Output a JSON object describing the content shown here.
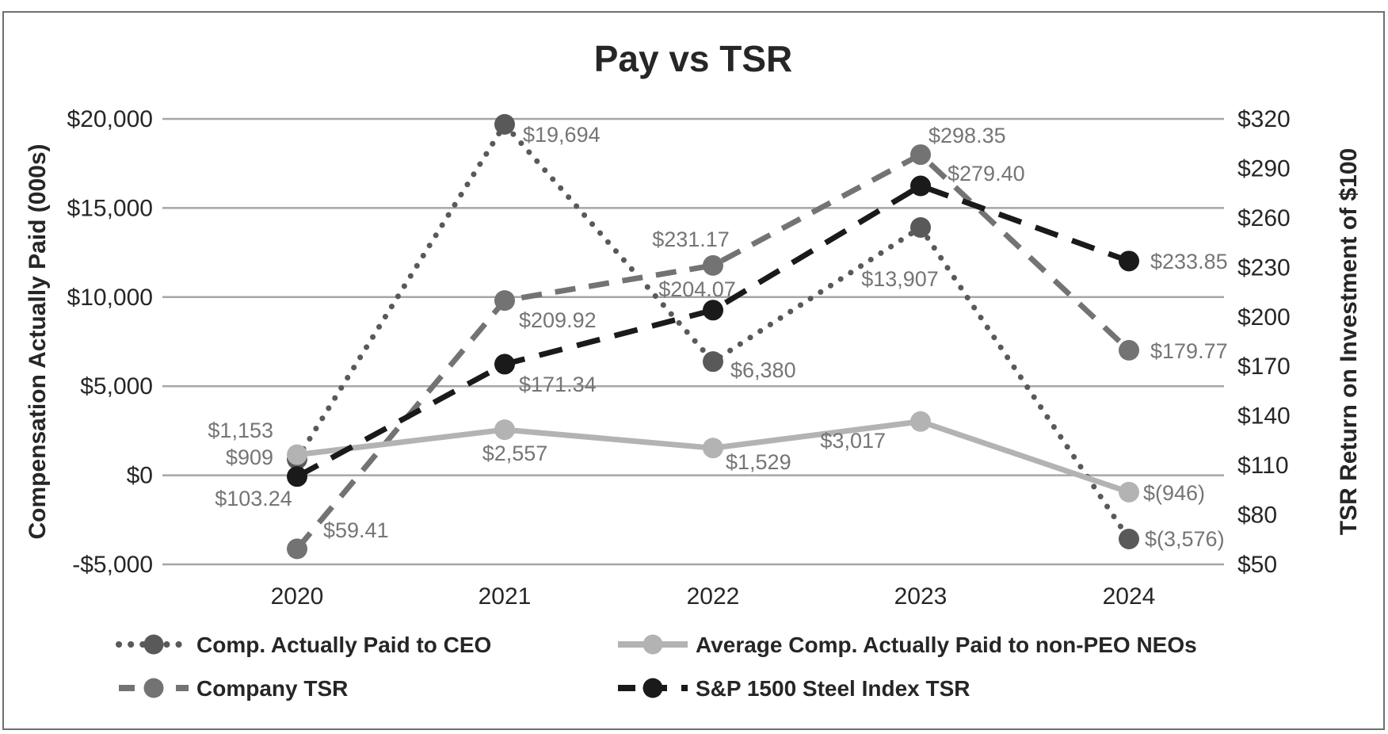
{
  "chart_data": {
    "type": "line",
    "title": "Pay vs TSR",
    "x_categories": [
      "2020",
      "2021",
      "2022",
      "2023",
      "2024"
    ],
    "left_axis": {
      "title": "Compensation Actually Paid (000s)",
      "min": -5000,
      "max": 20000,
      "tick_step": 5000,
      "tick_labels": [
        "$20,000",
        "$15,000",
        "$10,000",
        "$5,000",
        "$0",
        "-$5,000"
      ]
    },
    "right_axis": {
      "title": "TSR Return on Investment of $100",
      "min": 50,
      "max": 320,
      "tick_step": 30,
      "tick_labels": [
        "$320",
        "$290",
        "$260",
        "$230",
        "$200",
        "$170",
        "$140",
        "$110",
        "$80",
        "$50"
      ]
    },
    "grid": "horizontal",
    "grid_color": "#a6a6a6",
    "label_color": "#757575",
    "text_color": "#262626",
    "legend_position": "bottom",
    "series": [
      {
        "name": "Comp. Actually Paid to CEO",
        "axis": "left",
        "style": "dotted",
        "color": "#595959",
        "values": [
          909,
          19694,
          6380,
          13907,
          -3576
        ],
        "labels": [
          "$909",
          "$19,694",
          "$6,380",
          "$13,907",
          "$(3,576)"
        ]
      },
      {
        "name": "Average Comp. Actually Paid to non-PEO NEOs",
        "axis": "left",
        "style": "solid",
        "color": "#b3b3b3",
        "values": [
          1153,
          2557,
          1529,
          3017,
          -946
        ],
        "labels": [
          "$1,153",
          "$2,557",
          "$1,529",
          "$3,017",
          "$(946)"
        ]
      },
      {
        "name": "Company TSR",
        "axis": "right",
        "style": "dashed",
        "color": "#737373",
        "values": [
          59.41,
          209.92,
          231.17,
          298.35,
          179.77
        ],
        "labels": [
          "$59.41",
          "$209.92",
          "$231.17",
          "$298.35",
          "$179.77"
        ]
      },
      {
        "name": "S&P 1500 Steel Index TSR",
        "axis": "right",
        "style": "dashed-black",
        "color": "#1a1a1a",
        "values": [
          103.24,
          171.34,
          204.07,
          279.4,
          233.85
        ],
        "labels": [
          "$103.24",
          "$171.34",
          "$204.07",
          "$279.40",
          "$233.85"
        ]
      }
    ]
  }
}
